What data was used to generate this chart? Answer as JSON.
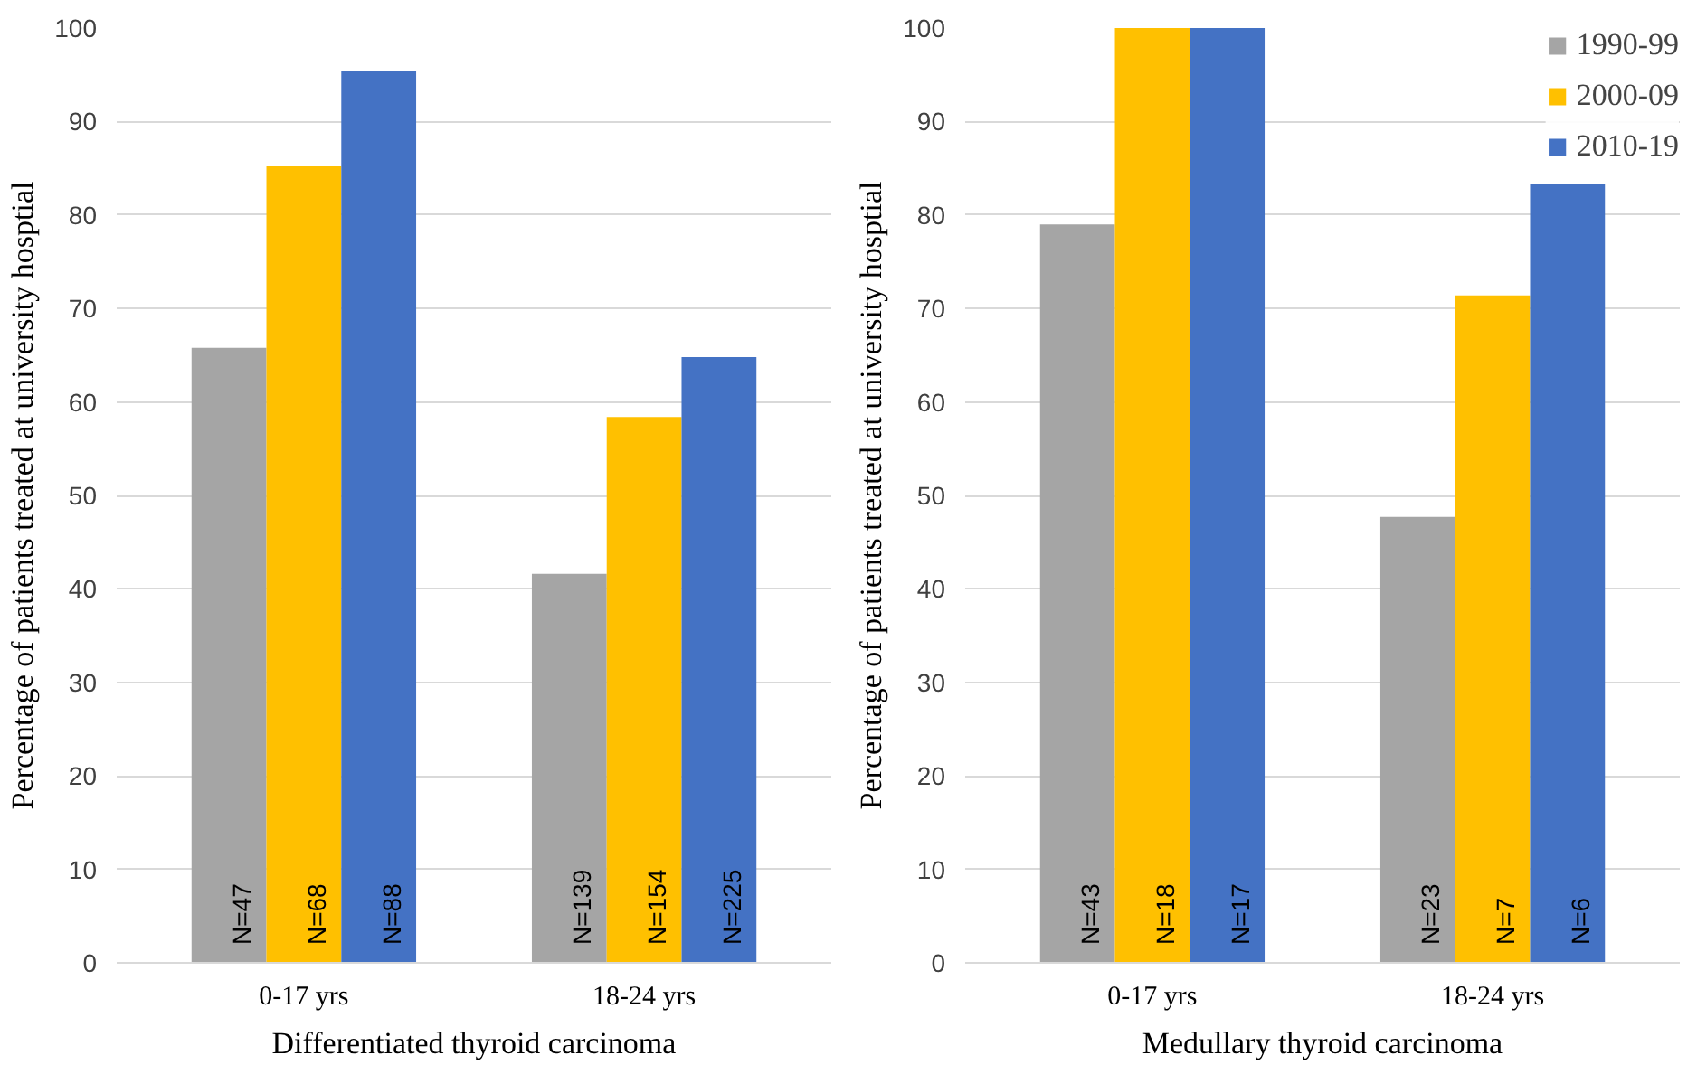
{
  "chart_data": [
    {
      "type": "bar",
      "xlabel": "Differentiated thyroid carcinoma",
      "ylabel": "Percentage of patients treated at university hosptial",
      "categories": [
        "0-17 yrs",
        "18-24 yrs"
      ],
      "ylim": [
        0,
        100
      ],
      "yticks": [
        0,
        10,
        20,
        30,
        40,
        50,
        60,
        70,
        80,
        90,
        100
      ],
      "grid": "y",
      "legend": false,
      "series": [
        {
          "color": "#a5a5a5",
          "values": [
            65.8,
            41.6
          ]
        },
        {
          "color": "#ffc000",
          "values": [
            85.2,
            58.4
          ]
        },
        {
          "color": "#4472c4",
          "values": [
            95.4,
            64.8
          ]
        }
      ],
      "annotations": [
        "N=47",
        "N=68",
        "N=88",
        "N=139",
        "N=154",
        "N=225"
      ]
    },
    {
      "type": "bar",
      "xlabel": "Medullary thyroid carcinoma",
      "ylabel": "Percentage of patients treated at university hosptial",
      "categories": [
        "0-17 yrs",
        "18-24 yrs"
      ],
      "ylim": [
        0,
        100
      ],
      "yticks": [
        0,
        10,
        20,
        30,
        40,
        50,
        60,
        70,
        80,
        90,
        100
      ],
      "grid": "y",
      "legend": "top right",
      "series": [
        {
          "name": "1990-99",
          "color": "#a5a5a5",
          "values": [
            79.0,
            47.7
          ]
        },
        {
          "name": "2000-09",
          "color": "#ffc000",
          "values": [
            100,
            71.4
          ]
        },
        {
          "name": "2010-19",
          "color": "#4472c4",
          "values": [
            100,
            83.3
          ]
        }
      ],
      "annotations": [
        "N=43",
        "N=18",
        "N=17",
        "N=23",
        "N=7",
        "N=6"
      ]
    }
  ]
}
